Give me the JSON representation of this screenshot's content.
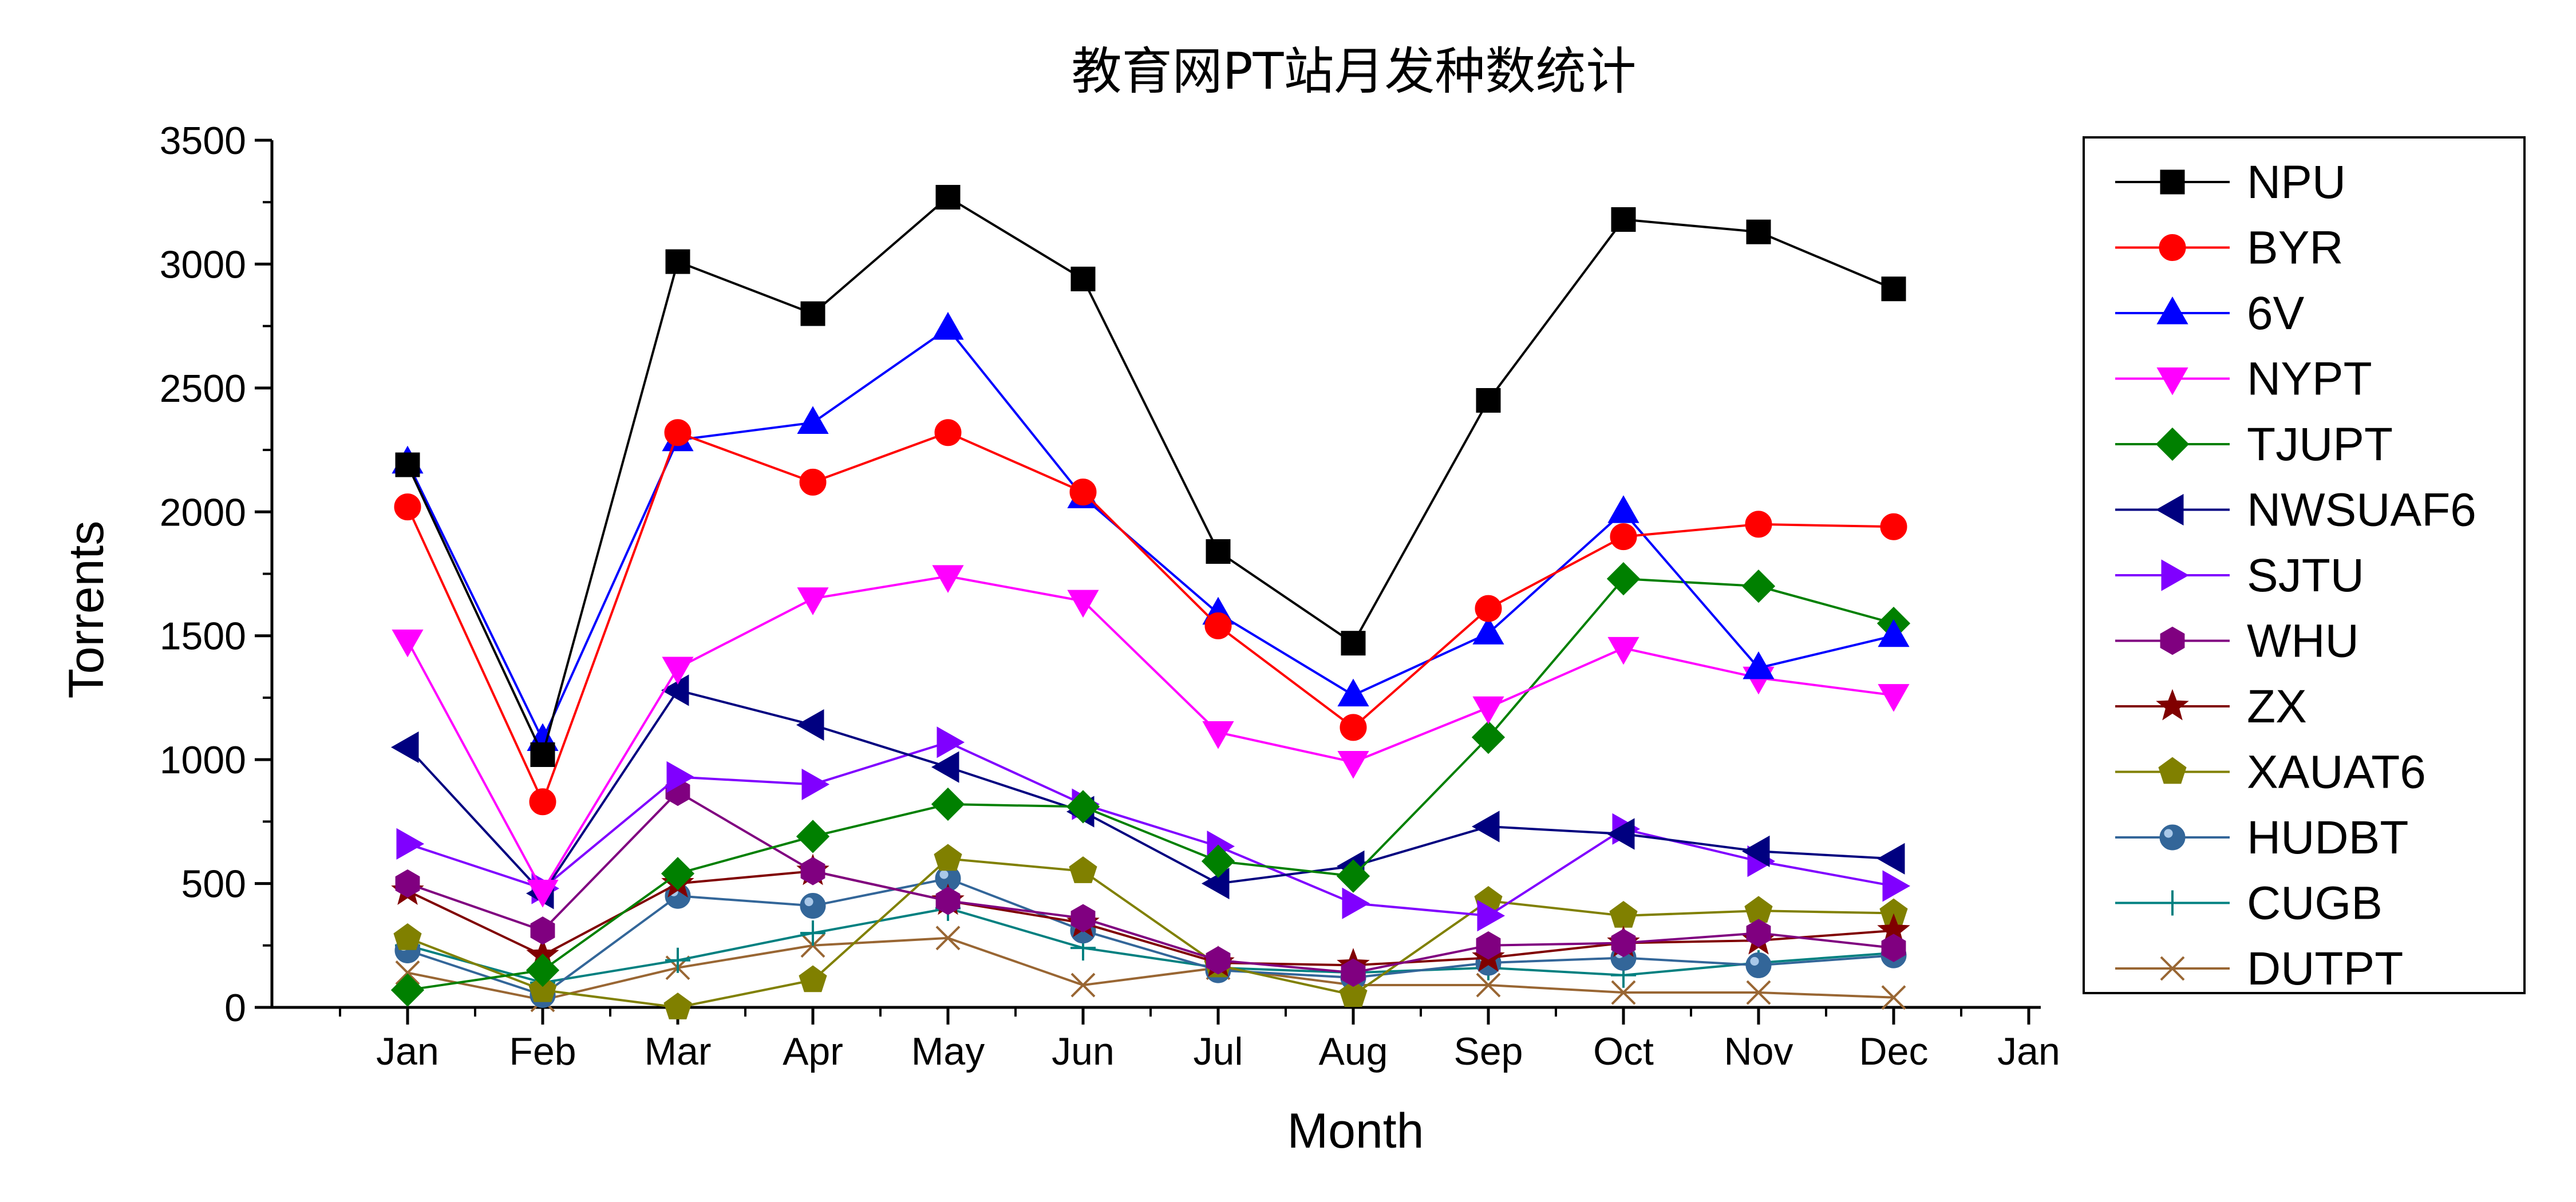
{
  "chart_data": {
    "type": "line",
    "title": "教育网PT站月发种数统计",
    "xlabel": "Month",
    "ylabel": "Torrents",
    "categories": [
      "Jan",
      "Feb",
      "Mar",
      "Apr",
      "May",
      "Jun",
      "Jul",
      "Aug",
      "Sep",
      "Oct",
      "Nov",
      "Dec"
    ],
    "x_ticks": [
      "Jan",
      "Feb",
      "Mar",
      "Apr",
      "May",
      "Jun",
      "Jul",
      "Aug",
      "Sep",
      "Oct",
      "Nov",
      "Dec",
      "Jan"
    ],
    "y_ticks": [
      0,
      500,
      1000,
      1500,
      2000,
      2500,
      3000,
      3500
    ],
    "ylim": [
      0,
      3500
    ],
    "grid": false,
    "legend_position": "right",
    "series": [
      {
        "name": "NPU",
        "color": "#000000",
        "marker": "square",
        "values": [
          2190,
          1020,
          3010,
          2800,
          3270,
          2940,
          1840,
          1470,
          2450,
          3180,
          3130,
          2900
        ]
      },
      {
        "name": "BYR",
        "color": "#ff0000",
        "marker": "circle",
        "values": [
          2020,
          830,
          2320,
          2120,
          2320,
          2080,
          1540,
          1130,
          1610,
          1900,
          1950,
          1940
        ]
      },
      {
        "name": "6V",
        "color": "#0000ff",
        "marker": "triangle-up",
        "values": [
          2200,
          1080,
          2290,
          2360,
          2740,
          2060,
          1590,
          1260,
          1510,
          2000,
          1370,
          1500
        ]
      },
      {
        "name": "NYPT",
        "color": "#ff00ff",
        "marker": "triangle-down",
        "values": [
          1480,
          470,
          1370,
          1650,
          1740,
          1640,
          1110,
          990,
          1210,
          1450,
          1330,
          1260
        ]
      },
      {
        "name": "TJUPT",
        "color": "#008000",
        "marker": "diamond",
        "values": [
          70,
          150,
          540,
          690,
          820,
          810,
          590,
          530,
          1090,
          1730,
          1700,
          1550
        ]
      },
      {
        "name": "NWSUAF6",
        "color": "#000080",
        "marker": "triangle-left",
        "values": [
          1050,
          460,
          1280,
          1140,
          970,
          790,
          500,
          570,
          730,
          700,
          630,
          600
        ]
      },
      {
        "name": "SJTU",
        "color": "#8000ff",
        "marker": "triangle-right",
        "values": [
          660,
          480,
          930,
          900,
          1070,
          820,
          650,
          420,
          370,
          720,
          590,
          490
        ]
      },
      {
        "name": "WHU",
        "color": "#800080",
        "marker": "hexagon",
        "values": [
          500,
          310,
          870,
          550,
          430,
          360,
          190,
          140,
          250,
          260,
          300,
          240
        ]
      },
      {
        "name": "ZX",
        "color": "#800000",
        "marker": "star",
        "values": [
          470,
          210,
          500,
          550,
          430,
          340,
          180,
          170,
          200,
          260,
          270,
          310
        ]
      },
      {
        "name": "XAUAT6",
        "color": "#808000",
        "marker": "pentagon",
        "values": [
          280,
          70,
          0,
          110,
          600,
          550,
          170,
          50,
          430,
          370,
          390,
          380
        ]
      },
      {
        "name": "HUDBT",
        "color": "#336699",
        "marker": "sphere",
        "values": [
          230,
          50,
          450,
          410,
          520,
          310,
          150,
          120,
          180,
          200,
          170,
          210
        ]
      },
      {
        "name": "CUGB",
        "color": "#008080",
        "marker": "plus",
        "values": [
          250,
          100,
          190,
          300,
          400,
          240,
          160,
          140,
          160,
          130,
          180,
          220
        ]
      },
      {
        "name": "DUTPT",
        "color": "#996633",
        "marker": "x",
        "values": [
          140,
          30,
          160,
          250,
          280,
          90,
          160,
          90,
          90,
          60,
          60,
          40
        ]
      }
    ]
  }
}
